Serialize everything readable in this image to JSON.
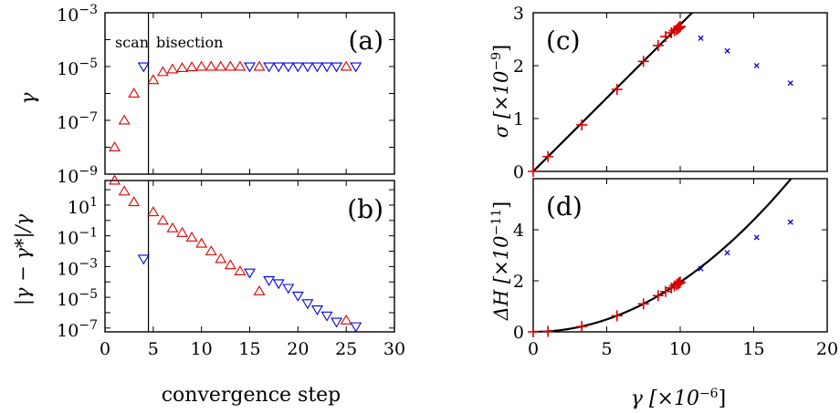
{
  "chart_data": [
    {
      "id": "a",
      "type": "scatter",
      "panel_label": "(a)",
      "xlim": [
        0,
        30
      ],
      "ylog": true,
      "ylim_log10": [
        -9,
        -3
      ],
      "ylabel": "γ",
      "ytick_labels": [
        {
          "exp": -9,
          "text": "10",
          "sup": "−9"
        },
        {
          "exp": -7,
          "text": "10",
          "sup": "−7"
        },
        {
          "exp": -5,
          "text": "10",
          "sup": "−5"
        },
        {
          "exp": -3,
          "text": "10",
          "sup": "−3"
        }
      ],
      "vline_x": 4.5,
      "annotations": [
        "scan",
        "bisection"
      ],
      "series": [
        {
          "marker": "triangle-up",
          "color": "#dd0000",
          "x": [
            1,
            2,
            3,
            5,
            6,
            7,
            8,
            9,
            10,
            11,
            12,
            13,
            14,
            16,
            25
          ],
          "log10y": [
            -8.0,
            -7.0,
            -6.0,
            -5.5,
            -5.2,
            -5.1,
            -5.05,
            -5.02,
            -5.0,
            -5.0,
            -5.0,
            -5.0,
            -5.0,
            -5.0,
            -5.0
          ]
        },
        {
          "marker": "triangle-down",
          "color": "#0000dd",
          "x": [
            4,
            15,
            17,
            18,
            19,
            20,
            21,
            22,
            23,
            24,
            26
          ],
          "log10y": [
            -5.0,
            -5.0,
            -5.0,
            -5.0,
            -5.0,
            -5.0,
            -5.0,
            -5.0,
            -5.0,
            -5.0,
            -5.0
          ]
        }
      ]
    },
    {
      "id": "b",
      "type": "scatter",
      "panel_label": "(b)",
      "xlim": [
        0,
        30
      ],
      "ylog": true,
      "ylim_log10": [
        -7.25,
        2.6
      ],
      "ylabel": "|γ − γ*|/γ",
      "xlabel": "convergence step",
      "xticks": [
        0,
        5,
        10,
        15,
        20,
        25,
        30
      ],
      "ytick_labels": [
        {
          "exp": -7,
          "text": "10",
          "sup": "−7"
        },
        {
          "exp": -5,
          "text": "10",
          "sup": "−5"
        },
        {
          "exp": -3,
          "text": "10",
          "sup": "−3"
        },
        {
          "exp": -1,
          "text": "10",
          "sup": "−1"
        },
        {
          "exp": 1,
          "text": "10",
          "sup": "1"
        }
      ],
      "vline_x": 4.5,
      "series": [
        {
          "marker": "triangle-up",
          "color": "#dd0000",
          "x": [
            1,
            2,
            3,
            5,
            6,
            7,
            8,
            9,
            10,
            11,
            12,
            13,
            14,
            16,
            25
          ],
          "log10y": [
            2.6,
            1.9,
            1.2,
            0.55,
            0.0,
            -0.5,
            -0.8,
            -1.1,
            -1.5,
            -2.0,
            -2.5,
            -2.9,
            -3.3,
            -4.6,
            -6.5
          ]
        },
        {
          "marker": "triangle-down",
          "color": "#0000dd",
          "x": [
            4,
            15,
            17,
            18,
            19,
            20,
            21,
            22,
            23,
            24,
            26
          ],
          "log10y": [
            -2.5,
            -3.4,
            -3.9,
            -4.1,
            -4.4,
            -4.9,
            -5.4,
            -5.8,
            -6.2,
            -6.6,
            -6.9
          ]
        }
      ]
    },
    {
      "id": "c",
      "type": "scatter",
      "panel_label": "(c)",
      "xlim": [
        0,
        20
      ],
      "ylim": [
        0,
        3
      ],
      "yticks": [
        0,
        1,
        2,
        3
      ],
      "ylabel": "σ [×10",
      "ylabel_sup": "−9",
      "ylabel_end": "]",
      "fit_line": {
        "type": "linear",
        "slope": 0.2775
      },
      "series": [
        {
          "marker": "plus",
          "color": "#dd0000",
          "x": [
            0.0,
            1.0,
            3.3,
            5.7,
            7.5,
            8.5,
            9.0,
            9.4,
            9.6,
            9.75,
            9.85,
            9.9,
            9.95,
            10.0
          ],
          "y": [
            0.0,
            0.28,
            0.88,
            1.55,
            2.08,
            2.38,
            2.55,
            2.62,
            2.66,
            2.68,
            2.7,
            2.72,
            2.73,
            2.74
          ]
        },
        {
          "marker": "x",
          "color": "#0000dd",
          "x": [
            11.4,
            13.2,
            15.2,
            17.5
          ],
          "y": [
            2.52,
            2.28,
            2.0,
            1.67
          ]
        }
      ]
    },
    {
      "id": "d",
      "type": "scatter",
      "panel_label": "(d)",
      "xlim": [
        0,
        20
      ],
      "ylim": [
        0,
        6
      ],
      "xticks": [
        0,
        5,
        10,
        15,
        20
      ],
      "yticks": [
        0,
        2,
        4
      ],
      "ylabel": "ΔH [×10",
      "ylabel_sup": "−11",
      "ylabel_end": "]",
      "xlabel": "γ [×10",
      "xlabel_sup": "−6",
      "xlabel_end": "]",
      "fit_line": {
        "type": "quadratic",
        "coef": 0.0195
      },
      "series": [
        {
          "marker": "plus",
          "color": "#dd0000",
          "x": [
            0.0,
            1.0,
            3.3,
            5.7,
            7.5,
            8.5,
            9.0,
            9.4,
            9.6,
            9.75,
            9.85,
            9.9,
            9.95,
            10.0
          ],
          "y": [
            0.0,
            0.02,
            0.21,
            0.63,
            1.1,
            1.42,
            1.58,
            1.72,
            1.8,
            1.85,
            1.88,
            1.9,
            1.93,
            1.95
          ]
        },
        {
          "marker": "x",
          "color": "#0000dd",
          "x": [
            11.4,
            13.2,
            15.2,
            17.5
          ],
          "y": [
            2.48,
            3.1,
            3.7,
            4.3
          ]
        }
      ]
    }
  ]
}
